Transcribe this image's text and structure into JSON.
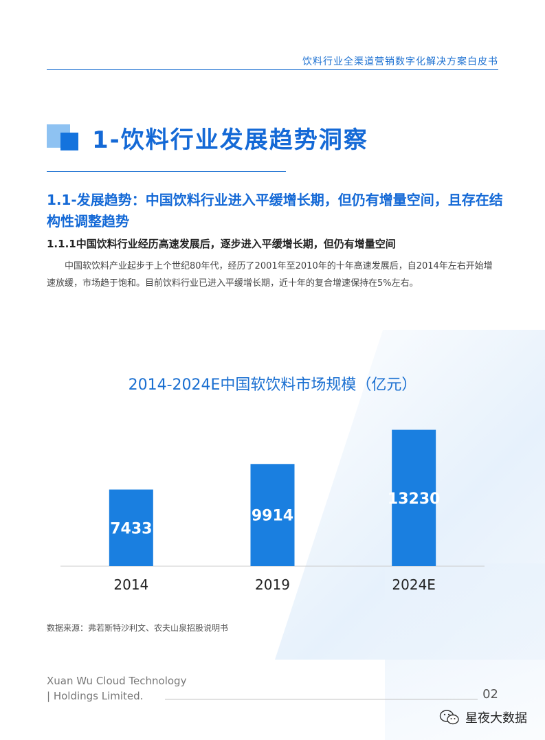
{
  "header": {
    "title": "饮料行业全渠道营销数字化解决方案白皮书"
  },
  "section": {
    "title": "1-饮料行业发展趋势洞察"
  },
  "subsection": {
    "title": "1.1-发展趋势：中国饮料行业进入平缓增长期，但仍有增量空间，且存在结构性调整趋势",
    "subtitle": "1.1.1中国饮料行业经历高速发展后，逐步进入平缓增长期，但仍有增量空间",
    "paragraph": "中国软饮料产业起步于上个世纪80年代，经历了2001年至2010年的十年高速发展后，自2014年左右开始增速放缓，市场趋于饱和。目前饮料行业已进入平缓增长期，近十年的复合增速保持在5%左右。"
  },
  "chart_data": {
    "type": "bar",
    "title": "2014-2024E中国软饮料市场规模（亿元）",
    "categories": [
      "2014",
      "2019",
      "2024E"
    ],
    "values": [
      7433,
      9914,
      13230
    ],
    "ylim": [
      0,
      14000
    ],
    "bar_color": "#1a7fe0",
    "grid": false,
    "legend": "none"
  },
  "source": "数据来源：弗若斯特沙利文、农夫山泉招股说明书",
  "footer": {
    "company_line1": "Xuan Wu Cloud Technology",
    "company_line2": "| Holdings Limited.",
    "page_number": "02"
  },
  "watermark": {
    "text": "星夜大数据",
    "icon": "wechat-icon"
  },
  "colors": {
    "accent": "#1469d6",
    "light_accent": "#8ec2f2"
  }
}
